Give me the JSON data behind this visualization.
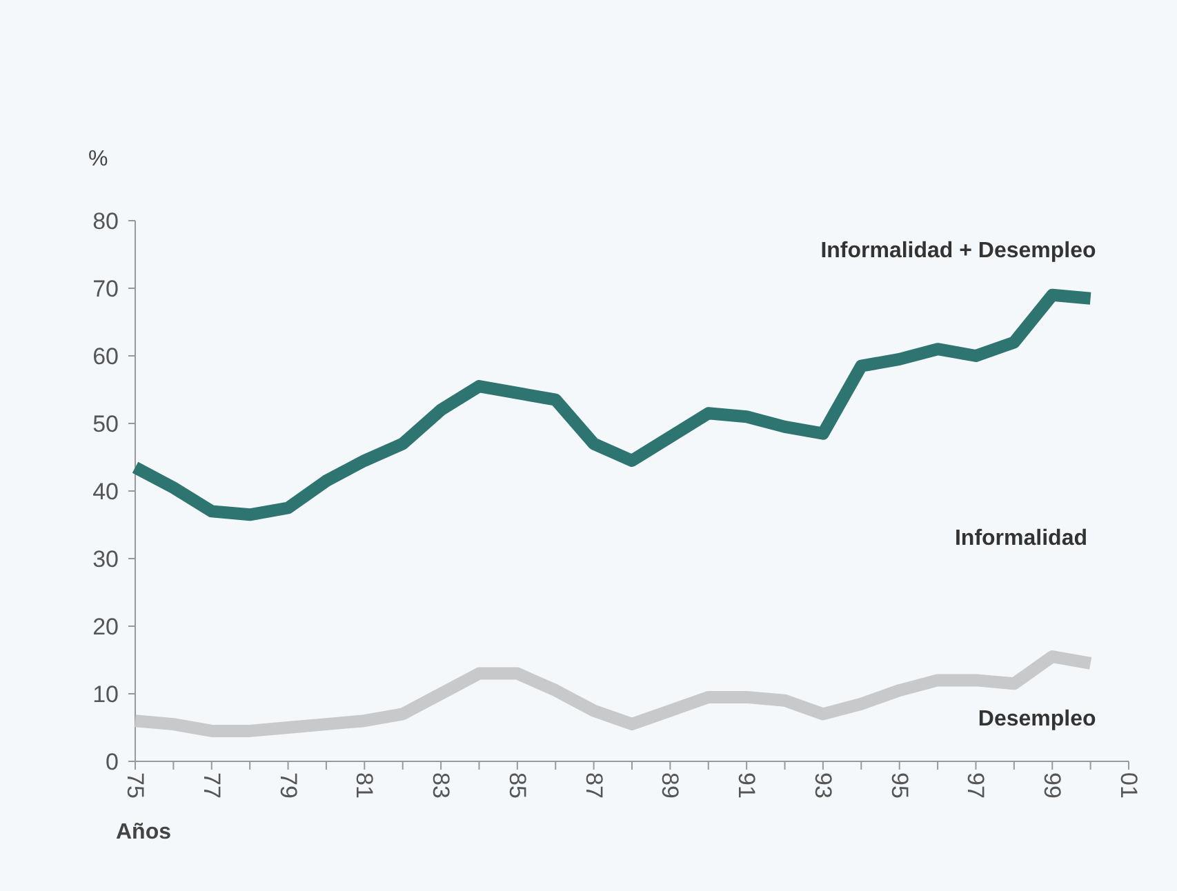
{
  "chart_data": {
    "type": "line",
    "ylabel": "%",
    "xlabel": "Años",
    "x": [
      1975,
      1976,
      1977,
      1978,
      1979,
      1980,
      1981,
      1982,
      1983,
      1984,
      1985,
      1986,
      1987,
      1988,
      1989,
      1990,
      1991,
      1992,
      1993,
      1994,
      1995,
      1996,
      1997,
      1998,
      1999,
      2000
    ],
    "series": [
      {
        "name": "Informalidad + Desempleo",
        "color": "#2e7470",
        "values": [
          43.5,
          40.5,
          37,
          36.5,
          37.5,
          41.5,
          44.5,
          47,
          52,
          55.5,
          54.5,
          53.5,
          47,
          44.5,
          48,
          51.5,
          51,
          49.5,
          48.5,
          58.5,
          59.5,
          61,
          60,
          62,
          69,
          68.5
        ]
      },
      {
        "name": "Desempleo",
        "color": "#c8c9ca",
        "values": [
          6,
          5.5,
          4.5,
          4.5,
          5,
          5.5,
          6,
          7,
          10,
          13,
          13,
          10.5,
          7.5,
          5.5,
          7.5,
          9.5,
          9.5,
          9,
          7,
          8.5,
          10.5,
          12,
          12,
          11.5,
          15.5,
          14.5
        ]
      }
    ],
    "annotations": [
      "Informalidad"
    ],
    "xlim": [
      1975,
      2001
    ],
    "xticks": [
      {
        "value": 1975,
        "label": "75"
      },
      {
        "value": 1976,
        "label": null
      },
      {
        "value": 1977,
        "label": "77"
      },
      {
        "value": 1978,
        "label": null
      },
      {
        "value": 1979,
        "label": "79"
      },
      {
        "value": 1980,
        "label": null
      },
      {
        "value": 1981,
        "label": "81"
      },
      {
        "value": 1982,
        "label": null
      },
      {
        "value": 1983,
        "label": "83"
      },
      {
        "value": 1984,
        "label": null
      },
      {
        "value": 1985,
        "label": "85"
      },
      {
        "value": 1986,
        "label": null
      },
      {
        "value": 1987,
        "label": "87"
      },
      {
        "value": 1988,
        "label": null
      },
      {
        "value": 1989,
        "label": "89"
      },
      {
        "value": 1990,
        "label": null
      },
      {
        "value": 1991,
        "label": "91"
      },
      {
        "value": 1992,
        "label": null
      },
      {
        "value": 1993,
        "label": "93"
      },
      {
        "value": 1994,
        "label": null
      },
      {
        "value": 1995,
        "label": "95"
      },
      {
        "value": 1996,
        "label": null
      },
      {
        "value": 1997,
        "label": "97"
      },
      {
        "value": 1998,
        "label": null
      },
      {
        "value": 1999,
        "label": "99"
      },
      {
        "value": 2000,
        "label": null
      },
      {
        "value": 2001,
        "label": "01"
      }
    ],
    "ylim": [
      0,
      80
    ],
    "yticks": [
      0,
      10,
      20,
      30,
      40,
      50,
      60,
      70,
      80
    ],
    "grid": false,
    "marker": "none",
    "line_style": "solid"
  }
}
